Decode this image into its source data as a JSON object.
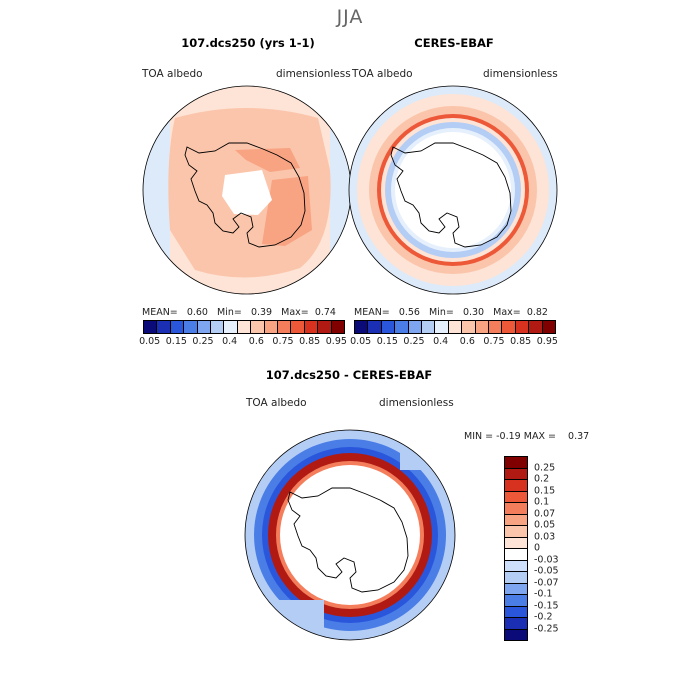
{
  "title": "JJA",
  "panels": [
    {
      "title": "107.dcs250 (yrs 1-1)",
      "variable": "TOA albedo",
      "units": "dimensionless",
      "stats": {
        "mean_label": "MEAN=",
        "mean": "0.60",
        "min_label": "Min=",
        "min": "0.39",
        "max_label": "Max=",
        "max": "0.74"
      }
    },
    {
      "title": "CERES-EBAF",
      "variable": "TOA albedo",
      "units": "dimensionless",
      "stats": {
        "mean_label": "MEAN=",
        "mean": "0.56",
        "min_label": "Min=",
        "min": "0.30",
        "max_label": "Max=",
        "max": "0.82"
      }
    }
  ],
  "diff": {
    "title": "107.dcs250 - CERES-EBAF",
    "variable": "TOA albedo",
    "units": "dimensionless",
    "min_label": "MIN =",
    "min": "-0.19",
    "max_label": "MAX =",
    "max": "0.37"
  },
  "colorbar": {
    "colors": [
      "#0a0a78",
      "#1a2fb4",
      "#2a56dc",
      "#4a7ee6",
      "#7ea6f0",
      "#b4cdf5",
      "#e6f0fc",
      "#fde4d6",
      "#fbc5ab",
      "#f8a382",
      "#f47e5c",
      "#ec5838",
      "#d6321f",
      "#b01a12",
      "#800000"
    ],
    "labels": [
      "0.05",
      "0.15",
      "0.25",
      "0.4",
      "0.6",
      "0.75",
      "0.85",
      "0.95"
    ]
  },
  "diff_colorbar": {
    "colors": [
      "#800000",
      "#b01a12",
      "#d6321f",
      "#ec5838",
      "#f47e5c",
      "#f8a382",
      "#fbc5ab",
      "#fde4d6",
      "#ffffff",
      "#cddffa",
      "#b4cdf5",
      "#7ea6f0",
      "#4a7ee6",
      "#2a56dc",
      "#1a2fb4",
      "#0a0a78"
    ],
    "labels": [
      "0.25",
      "0.2",
      "0.15",
      "0.1",
      "0.07",
      "0.05",
      "0.03",
      "0",
      "-0.03",
      "-0.05",
      "-0.07",
      "-0.1",
      "-0.15",
      "-0.2",
      "-0.25"
    ]
  }
}
